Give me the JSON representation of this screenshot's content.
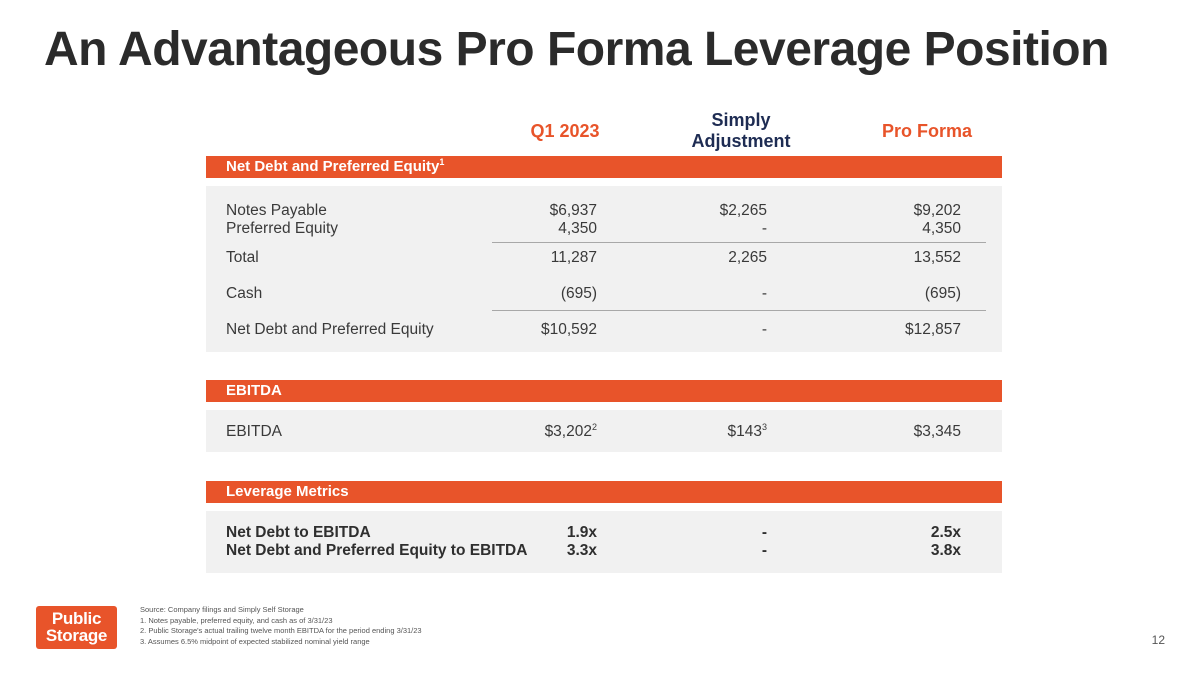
{
  "title": "An Advantageous Pro Forma Leverage Position",
  "columns": {
    "q1": "Q1 2023",
    "adj_line1": "Simply",
    "adj_line2": "Adjustment",
    "pro": "Pro Forma"
  },
  "sections": {
    "net_debt": {
      "header": "Net Debt and Preferred Equity",
      "header_sup": "1",
      "rows": [
        {
          "label": "Notes Payable",
          "q1": "$6,937",
          "adj": "$2,265",
          "pro": "$9,202"
        },
        {
          "label": "Preferred Equity",
          "q1": "4,350",
          "adj": "-",
          "pro": "4,350"
        },
        {
          "label": "Total",
          "q1": "11,287",
          "adj": "2,265",
          "pro": "13,552"
        },
        {
          "label": "Cash",
          "q1": "(695)",
          "adj": "-",
          "pro": "(695)"
        },
        {
          "label": "Net Debt and Preferred Equity",
          "q1": "$10,592",
          "adj": "-",
          "pro": "$12,857"
        }
      ]
    },
    "ebitda": {
      "header": "EBITDA",
      "row": {
        "label": "EBITDA",
        "q1": "$3,202",
        "q1_sup": "2",
        "adj": "$143",
        "adj_sup": "3",
        "pro": "$3,345"
      }
    },
    "leverage": {
      "header": "Leverage Metrics",
      "rows": [
        {
          "label": "Net Debt to EBITDA",
          "q1": "1.9x",
          "adj": "-",
          "pro": "2.5x"
        },
        {
          "label": "Net Debt and Preferred Equity to EBITDA",
          "q1": "3.3x",
          "adj": "-",
          "pro": "3.8x"
        }
      ]
    }
  },
  "footnotes": {
    "source": "Source: Company filings and Simply Self Storage",
    "n1": "1.  Notes payable, preferred equity, and cash as of 3/31/23",
    "n2": "2.  Public Storage's actual trailing twelve month EBITDA for the period ending 3/31/23",
    "n3": "3.  Assumes 6.5% midpoint of expected stabilized nominal yield range"
  },
  "logo": {
    "line1": "Public",
    "line2": "Storage"
  },
  "page_number": "12",
  "colors": {
    "accent": "#e8542a",
    "navy": "#1e2c53",
    "panel": "#f1f1f1"
  }
}
